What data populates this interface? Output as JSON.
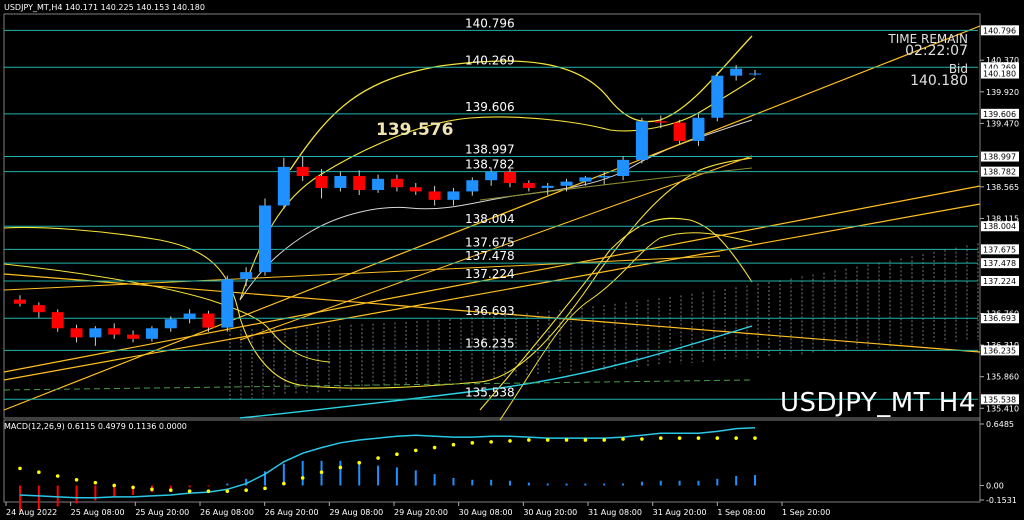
{
  "header": {
    "symbol_line": "USDJPY_MT,H4  140.171 140.225 140.153 140.180"
  },
  "timer": {
    "label": "TIME REMAIN",
    "value": "02:22:07",
    "bid_label": "Bid",
    "bid_value": "140.180"
  },
  "watermark": "USDJPY_MT H4",
  "annotation": "139.576",
  "macd_header": "MACD(12,26,9) 0.6115 0.4979 0.1136 0.0000",
  "levels": [
    {
      "label": "140.796",
      "price": 140.796
    },
    {
      "label": "140.269",
      "price": 140.269
    },
    {
      "label": "139.606",
      "price": 139.606
    },
    {
      "label": "138.997",
      "price": 138.997
    },
    {
      "label": "138.782",
      "price": 138.782
    },
    {
      "label": "138.004",
      "price": 138.004
    },
    {
      "label": "137.675",
      "price": 137.675
    },
    {
      "label": "137.478",
      "price": 137.478
    },
    {
      "label": "137.224",
      "price": 137.224
    },
    {
      "label": "136.693",
      "price": 136.693
    },
    {
      "label": "136.235",
      "price": 136.235
    },
    {
      "label": "135.538",
      "price": 135.538
    }
  ],
  "price_axis": {
    "ticks": [
      "140.370",
      "139.920",
      "139.470",
      "138.565",
      "138.115",
      "136.760",
      "136.310",
      "135.860",
      "135.410"
    ],
    "boxes": [
      "140.796",
      "140.269",
      "140.180",
      "139.606",
      "138.997",
      "138.782",
      "138.004",
      "137.675",
      "137.478",
      "137.224",
      "136.693",
      "136.235",
      "135.538"
    ]
  },
  "macd_axis": {
    "ticks": [
      "0.6485",
      "0.00",
      "-0.1531"
    ]
  },
  "time_axis": [
    "24 Aug 2022",
    "25 Aug 08:00",
    "25 Aug 20:00",
    "26 Aug 08:00",
    "26 Aug 20:00",
    "29 Aug 08:00",
    "29 Aug 20:00",
    "30 Aug 08:00",
    "30 Aug 20:00",
    "31 Aug 08:00",
    "31 Aug 20:00",
    "1 Sep 08:00",
    "1 Sep 20:00"
  ],
  "colors": {
    "bull": "#1e90ff",
    "bear": "#ff0000",
    "level_line": "#20b2aa",
    "band": "#f5e33a",
    "trend": "#ffc020",
    "cyan_ma": "#2bd3e6",
    "macd_line": "#29c8e8",
    "macd_signal": "#ffff00"
  },
  "chart_data": {
    "type": "candlestick",
    "symbol": "USDJPY_MT",
    "timeframe": "H4",
    "ylim": [
      135.3,
      141.0
    ],
    "candles": [
      {
        "o": 136.96,
        "h": 137.02,
        "l": 136.86,
        "c": 136.9
      },
      {
        "o": 136.88,
        "h": 136.92,
        "l": 136.7,
        "c": 136.78
      },
      {
        "o": 136.78,
        "h": 136.82,
        "l": 136.5,
        "c": 136.55
      },
      {
        "o": 136.55,
        "h": 136.6,
        "l": 136.35,
        "c": 136.42
      },
      {
        "o": 136.42,
        "h": 136.58,
        "l": 136.3,
        "c": 136.55
      },
      {
        "o": 136.55,
        "h": 136.62,
        "l": 136.4,
        "c": 136.46
      },
      {
        "o": 136.46,
        "h": 136.52,
        "l": 136.35,
        "c": 136.4
      },
      {
        "o": 136.4,
        "h": 136.58,
        "l": 136.36,
        "c": 136.55
      },
      {
        "o": 136.55,
        "h": 136.72,
        "l": 136.5,
        "c": 136.68
      },
      {
        "o": 136.68,
        "h": 136.82,
        "l": 136.62,
        "c": 136.76
      },
      {
        "o": 136.76,
        "h": 136.8,
        "l": 136.5,
        "c": 136.56
      },
      {
        "o": 136.56,
        "h": 137.3,
        "l": 136.5,
        "c": 137.25
      },
      {
        "o": 137.25,
        "h": 137.42,
        "l": 137.15,
        "c": 137.35
      },
      {
        "o": 137.35,
        "h": 138.4,
        "l": 137.3,
        "c": 138.3
      },
      {
        "o": 138.3,
        "h": 138.98,
        "l": 138.25,
        "c": 138.85
      },
      {
        "o": 138.85,
        "h": 139.0,
        "l": 138.65,
        "c": 138.72
      },
      {
        "o": 138.72,
        "h": 138.82,
        "l": 138.4,
        "c": 138.55
      },
      {
        "o": 138.55,
        "h": 138.78,
        "l": 138.5,
        "c": 138.72
      },
      {
        "o": 138.72,
        "h": 138.8,
        "l": 138.45,
        "c": 138.52
      },
      {
        "o": 138.52,
        "h": 138.74,
        "l": 138.48,
        "c": 138.68
      },
      {
        "o": 138.68,
        "h": 138.74,
        "l": 138.5,
        "c": 138.56
      },
      {
        "o": 138.56,
        "h": 138.62,
        "l": 138.45,
        "c": 138.5
      },
      {
        "o": 138.5,
        "h": 138.58,
        "l": 138.3,
        "c": 138.38
      },
      {
        "o": 138.38,
        "h": 138.55,
        "l": 138.3,
        "c": 138.5
      },
      {
        "o": 138.5,
        "h": 138.7,
        "l": 138.44,
        "c": 138.66
      },
      {
        "o": 138.66,
        "h": 138.84,
        "l": 138.58,
        "c": 138.78
      },
      {
        "o": 138.78,
        "h": 138.82,
        "l": 138.56,
        "c": 138.62
      },
      {
        "o": 138.62,
        "h": 138.66,
        "l": 138.5,
        "c": 138.55
      },
      {
        "o": 138.55,
        "h": 138.62,
        "l": 138.45,
        "c": 138.58
      },
      {
        "o": 138.58,
        "h": 138.68,
        "l": 138.5,
        "c": 138.64
      },
      {
        "o": 138.64,
        "h": 138.72,
        "l": 138.58,
        "c": 138.7
      },
      {
        "o": 138.7,
        "h": 138.78,
        "l": 138.6,
        "c": 138.72
      },
      {
        "o": 138.72,
        "h": 139.0,
        "l": 138.66,
        "c": 138.95
      },
      {
        "o": 138.95,
        "h": 139.55,
        "l": 138.9,
        "c": 139.5
      },
      {
        "o": 139.5,
        "h": 139.58,
        "l": 139.4,
        "c": 139.48
      },
      {
        "o": 139.48,
        "h": 139.52,
        "l": 139.18,
        "c": 139.22
      },
      {
        "o": 139.22,
        "h": 139.6,
        "l": 139.15,
        "c": 139.55
      },
      {
        "o": 139.55,
        "h": 140.2,
        "l": 139.5,
        "c": 140.15
      },
      {
        "o": 140.15,
        "h": 140.3,
        "l": 140.08,
        "c": 140.25
      },
      {
        "o": 140.18,
        "h": 140.23,
        "l": 140.15,
        "c": 140.18
      }
    ],
    "macd": {
      "main": [
        -0.1,
        -0.11,
        -0.12,
        -0.13,
        -0.13,
        -0.12,
        -0.12,
        -0.11,
        -0.1,
        -0.08,
        -0.07,
        -0.04,
        0.02,
        0.12,
        0.25,
        0.34,
        0.4,
        0.45,
        0.48,
        0.5,
        0.52,
        0.53,
        0.52,
        0.51,
        0.51,
        0.52,
        0.52,
        0.51,
        0.5,
        0.5,
        0.5,
        0.5,
        0.51,
        0.53,
        0.55,
        0.55,
        0.55,
        0.57,
        0.6,
        0.61
      ],
      "signal": [
        0.18,
        0.14,
        0.1,
        0.06,
        0.03,
        0.0,
        -0.02,
        -0.04,
        -0.05,
        -0.06,
        -0.06,
        -0.06,
        -0.05,
        -0.03,
        0.02,
        0.08,
        0.14,
        0.19,
        0.24,
        0.29,
        0.33,
        0.37,
        0.4,
        0.43,
        0.45,
        0.46,
        0.47,
        0.48,
        0.48,
        0.48,
        0.48,
        0.48,
        0.49,
        0.49,
        0.5,
        0.5,
        0.5,
        0.5,
        0.5,
        0.5
      ]
    }
  }
}
